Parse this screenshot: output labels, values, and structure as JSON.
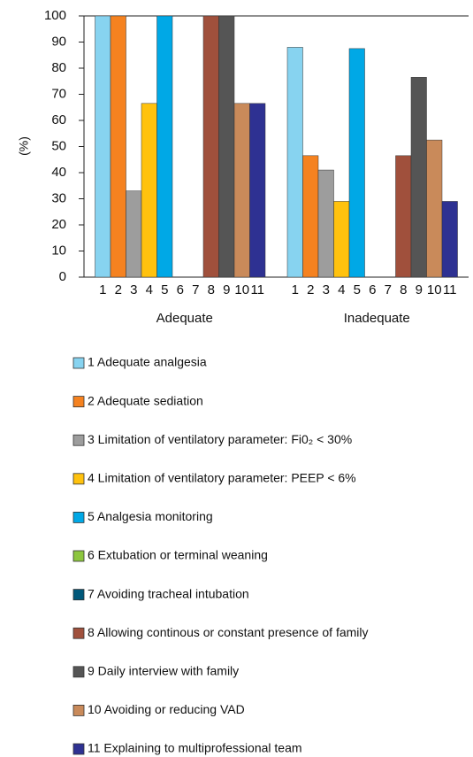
{
  "chart_data": {
    "type": "bar",
    "ylabel": "(%)",
    "categories": [
      "Adequate",
      "Inadequate"
    ],
    "bar_labels": [
      "1",
      "2",
      "3",
      "4",
      "5",
      "6",
      "7",
      "8",
      "9",
      "10",
      "11"
    ],
    "ylim": [
      0,
      100
    ],
    "yticks": [
      0,
      10,
      20,
      30,
      40,
      50,
      60,
      70,
      80,
      90,
      100
    ],
    "series": [
      {
        "name": "1 Adequate analgesia",
        "color": "#87d3f0",
        "values": [
          100,
          88
        ]
      },
      {
        "name": "2 Adequate sediation",
        "color": "#f58220",
        "values": [
          100,
          46.5
        ]
      },
      {
        "name": "3 Limitation of ventilatory parameter: Fi0₂ < 30%",
        "color": "#9d9d9d",
        "values": [
          33,
          41
        ]
      },
      {
        "name": "4 Limitation of ventilatory parameter: PEEP < 6%",
        "color": "#ffc20e",
        "values": [
          66.5,
          29
        ]
      },
      {
        "name": "5 Analgesia monitoring",
        "color": "#00a8e6",
        "values": [
          100,
          87.5
        ]
      },
      {
        "name": "6 Extubation or terminal weaning",
        "color": "#8dc63f",
        "values": [
          0,
          0
        ]
      },
      {
        "name": "7 Avoiding tracheal intubation",
        "color": "#00587a",
        "values": [
          0,
          0
        ]
      },
      {
        "name": "8 Allowing continous or constant presence of family",
        "color": "#a0503c",
        "values": [
          100,
          46.5
        ]
      },
      {
        "name": "9 Daily interview with family",
        "color": "#555555",
        "values": [
          100,
          76.5
        ]
      },
      {
        "name": "10 Avoiding or reducing VAD",
        "color": "#c98a5a",
        "values": [
          66.5,
          52.5
        ]
      },
      {
        "name": "11 Explaining to multiprofessional team",
        "color": "#2e3192",
        "values": [
          66.5,
          29
        ]
      }
    ]
  }
}
